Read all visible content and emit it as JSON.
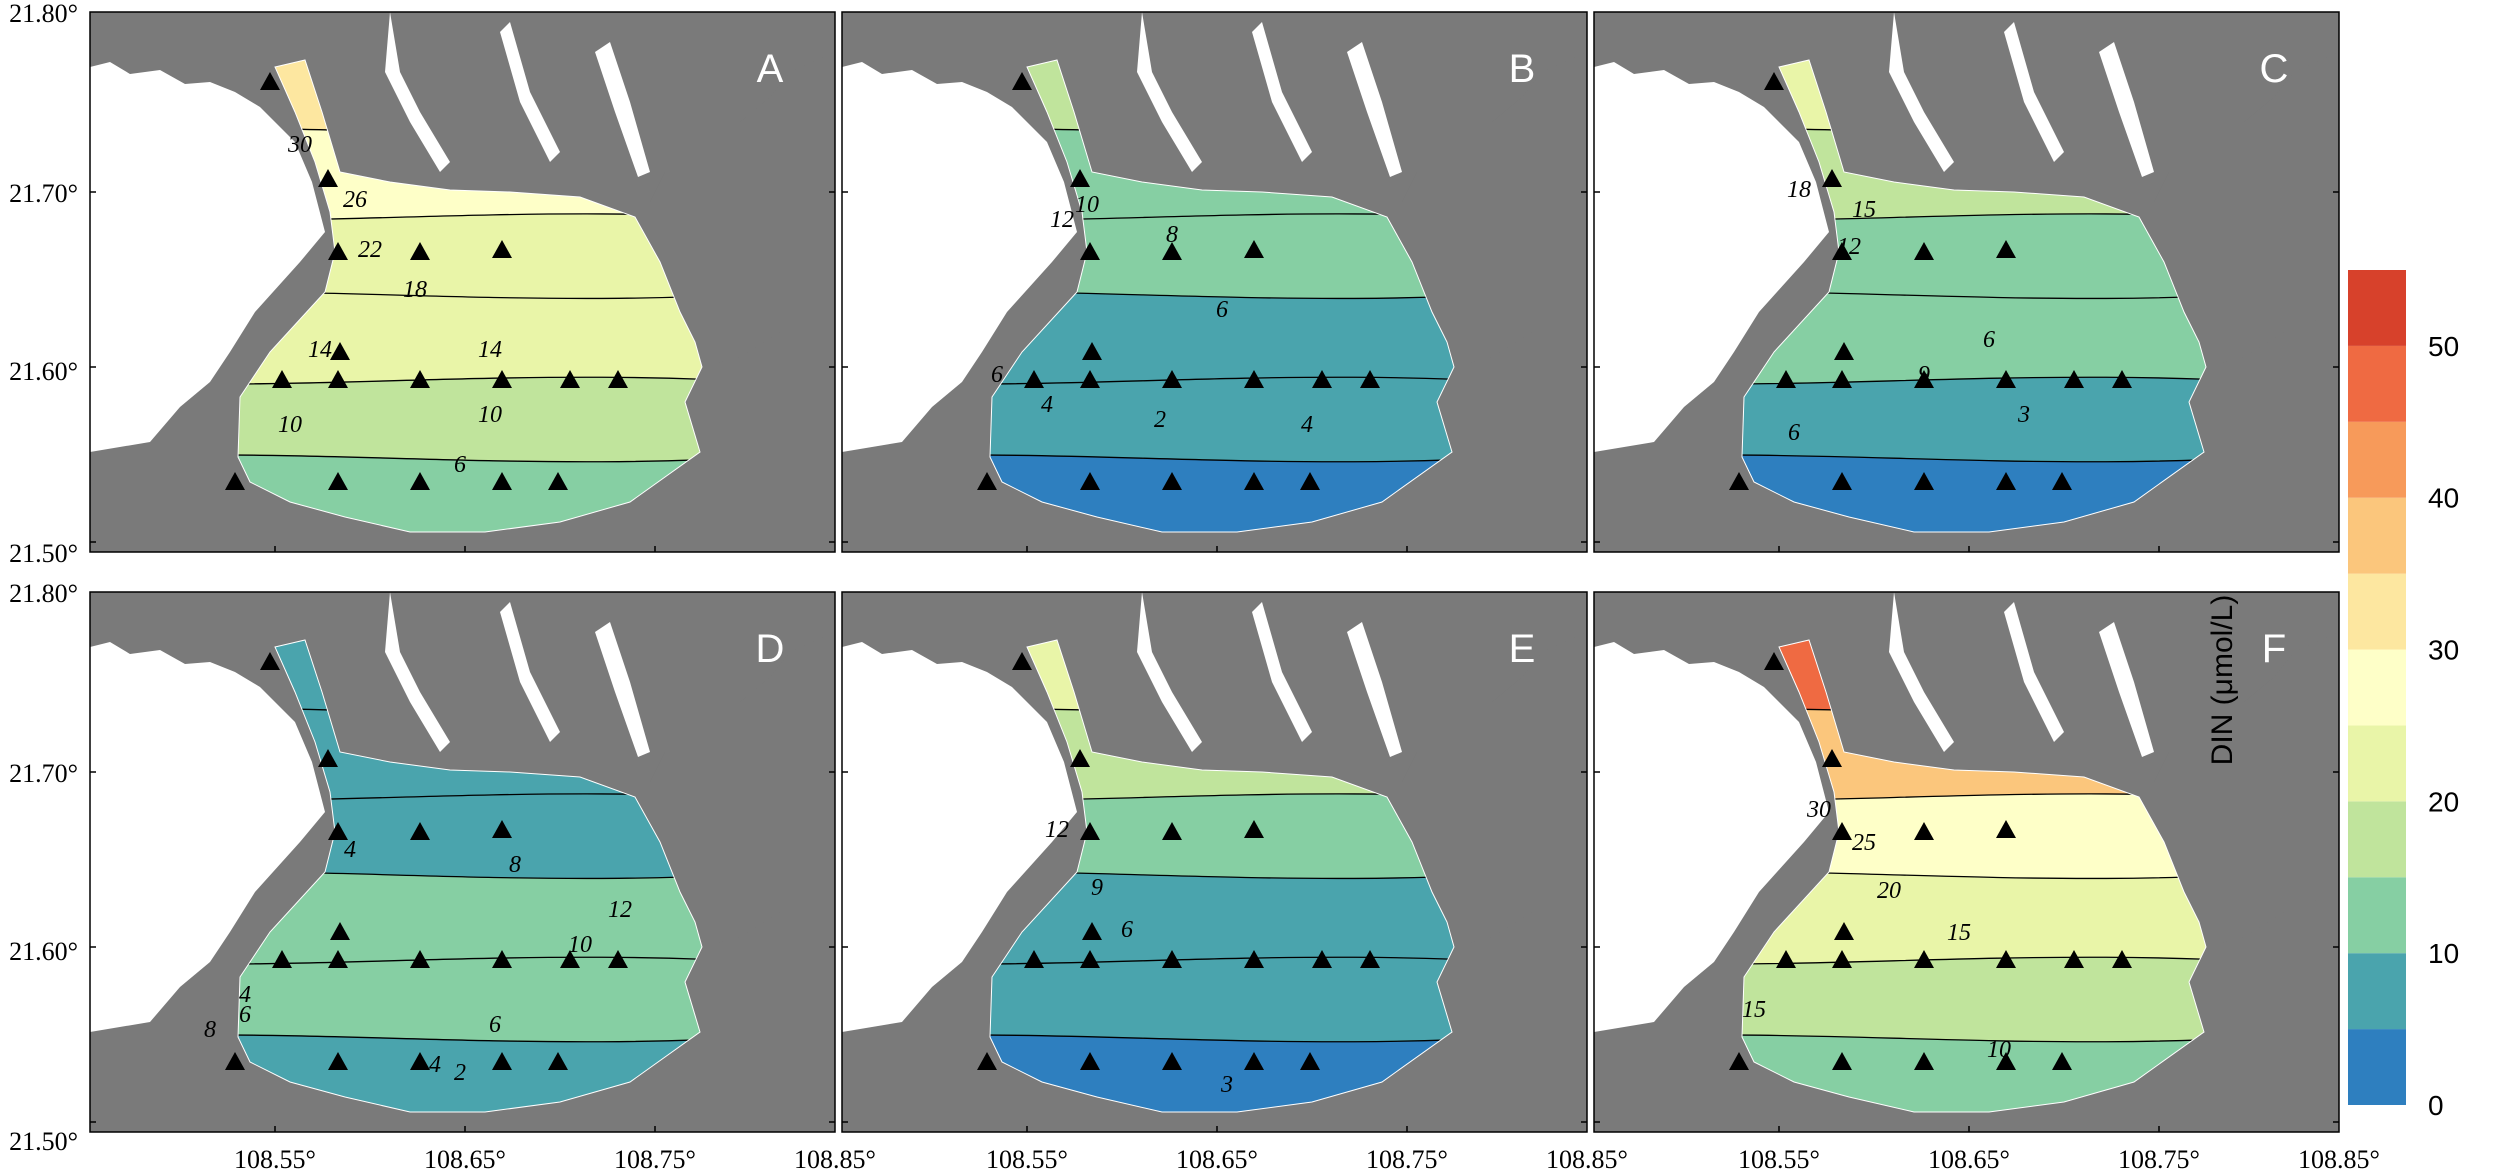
{
  "figure": {
    "lat_ticks": [
      "21.80°",
      "21.70°",
      "21.60°",
      "21.50°"
    ],
    "lon_ticks": [
      "108.55°",
      "108.65°",
      "108.75°",
      "108.85°"
    ],
    "colors": {
      "land": "#7a7a7a",
      "station_marker": "#000000",
      "scale": [
        "#2e7fbf",
        "#4aa4ad",
        "#86cfa3",
        "#c0e49c",
        "#e9f5a8",
        "#feffc8",
        "#fde7a0",
        "#fbc67c",
        "#f79a5a",
        "#ef6a42",
        "#d7412b"
      ]
    },
    "colorbar": {
      "title": "DIN (μmol/L)",
      "min": 0,
      "max": 55,
      "labels": [
        "0",
        "10",
        "20",
        "30",
        "40",
        "50"
      ],
      "bounds": [
        0,
        5,
        10,
        15,
        20,
        25,
        30,
        35,
        40,
        45,
        50,
        55
      ]
    },
    "panels": [
      {
        "letter": "A",
        "contour_labels": [
          "30",
          "26",
          "22",
          "18",
          "14",
          "14",
          "10",
          "10",
          "6"
        ]
      },
      {
        "letter": "B",
        "contour_labels": [
          "12",
          "10",
          "8",
          "6",
          "6",
          "4",
          "2",
          "4"
        ]
      },
      {
        "letter": "C",
        "contour_labels": [
          "18",
          "15",
          "12",
          "9",
          "6",
          "6",
          "3"
        ]
      },
      {
        "letter": "D",
        "contour_labels": [
          "4",
          "8",
          "12",
          "10",
          "6",
          "4",
          "4",
          "6",
          "8",
          "2"
        ]
      },
      {
        "letter": "E",
        "contour_labels": [
          "12",
          "9",
          "6",
          "3"
        ]
      },
      {
        "letter": "F",
        "contour_labels": [
          "30",
          "25",
          "20",
          "15",
          "15",
          "10"
        ]
      }
    ]
  }
}
